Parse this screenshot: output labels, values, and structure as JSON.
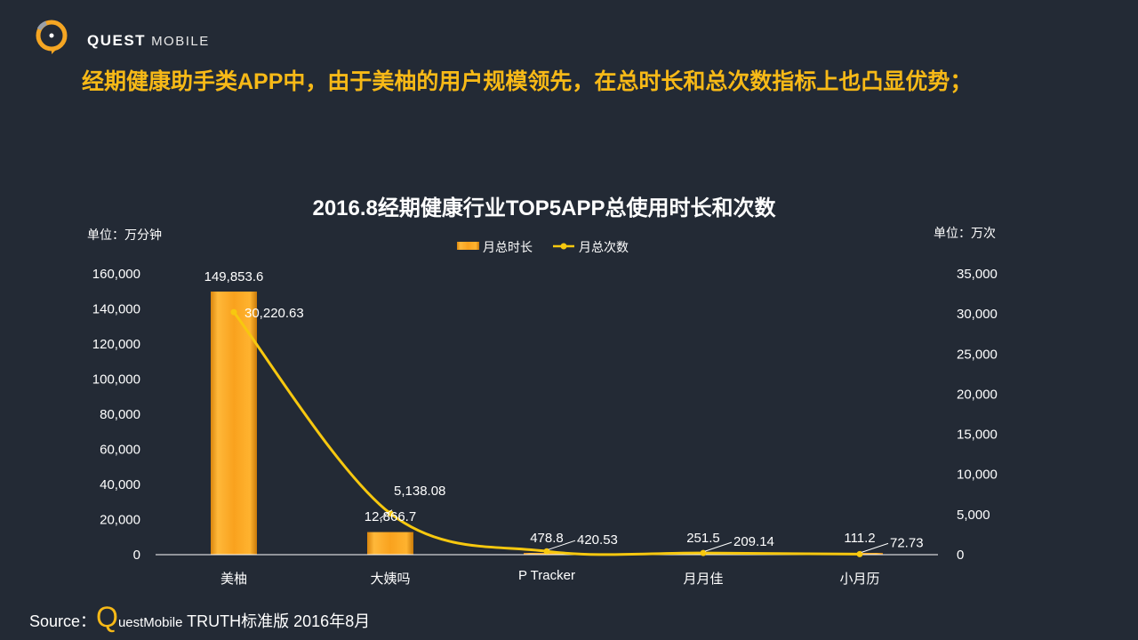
{
  "brand": {
    "name_bold": "QUEST",
    "name_light": "MOBILE",
    "accent": "#f7b917",
    "logo_icon": "questmobile-logo-icon"
  },
  "headline": "经期健康助手类APP中，由于美柚的用户规模领先，在总时长和总次数指标上也凸显优势；",
  "source": {
    "label": "Source：",
    "q": "Q",
    "rest": "uestMobile",
    "tail": " TRUTH标准版 2016年8月"
  },
  "chart_data": {
    "type": "bar",
    "title": "2016.8经期健康行业TOP5APP总使用时长和次数",
    "left_unit": "单位：万分钟",
    "right_unit": "单位：万次",
    "categories": [
      "美柚",
      "大姨吗",
      "P Tracker",
      "月月佳",
      "小月历"
    ],
    "series": [
      {
        "name": "月总时长",
        "kind": "bar",
        "axis": "left",
        "color": "#f5a623",
        "values": [
          149853.6,
          12866.7,
          478.8,
          251.5,
          111.2
        ],
        "labels": [
          "149,853.6",
          "12,866.7",
          "478.8",
          "251.5",
          "111.2"
        ]
      },
      {
        "name": "月总次数",
        "kind": "line",
        "axis": "right",
        "color": "#f7c80f",
        "values": [
          30220.63,
          5138.08,
          420.53,
          209.14,
          72.73
        ],
        "labels": [
          "30,220.63",
          "5,138.08",
          "420.53",
          "209.14",
          "72.73"
        ]
      }
    ],
    "ylim_left": [
      0,
      160000
    ],
    "ylim_right": [
      0,
      35000
    ],
    "left_ticks": [
      "0",
      "20,000",
      "40,000",
      "60,000",
      "80,000",
      "100,000",
      "120,000",
      "140,000",
      "160,000"
    ],
    "right_ticks": [
      "0",
      "5,000",
      "10,000",
      "15,000",
      "20,000",
      "25,000",
      "30,000",
      "35,000"
    ],
    "legend_position": "top-center"
  }
}
